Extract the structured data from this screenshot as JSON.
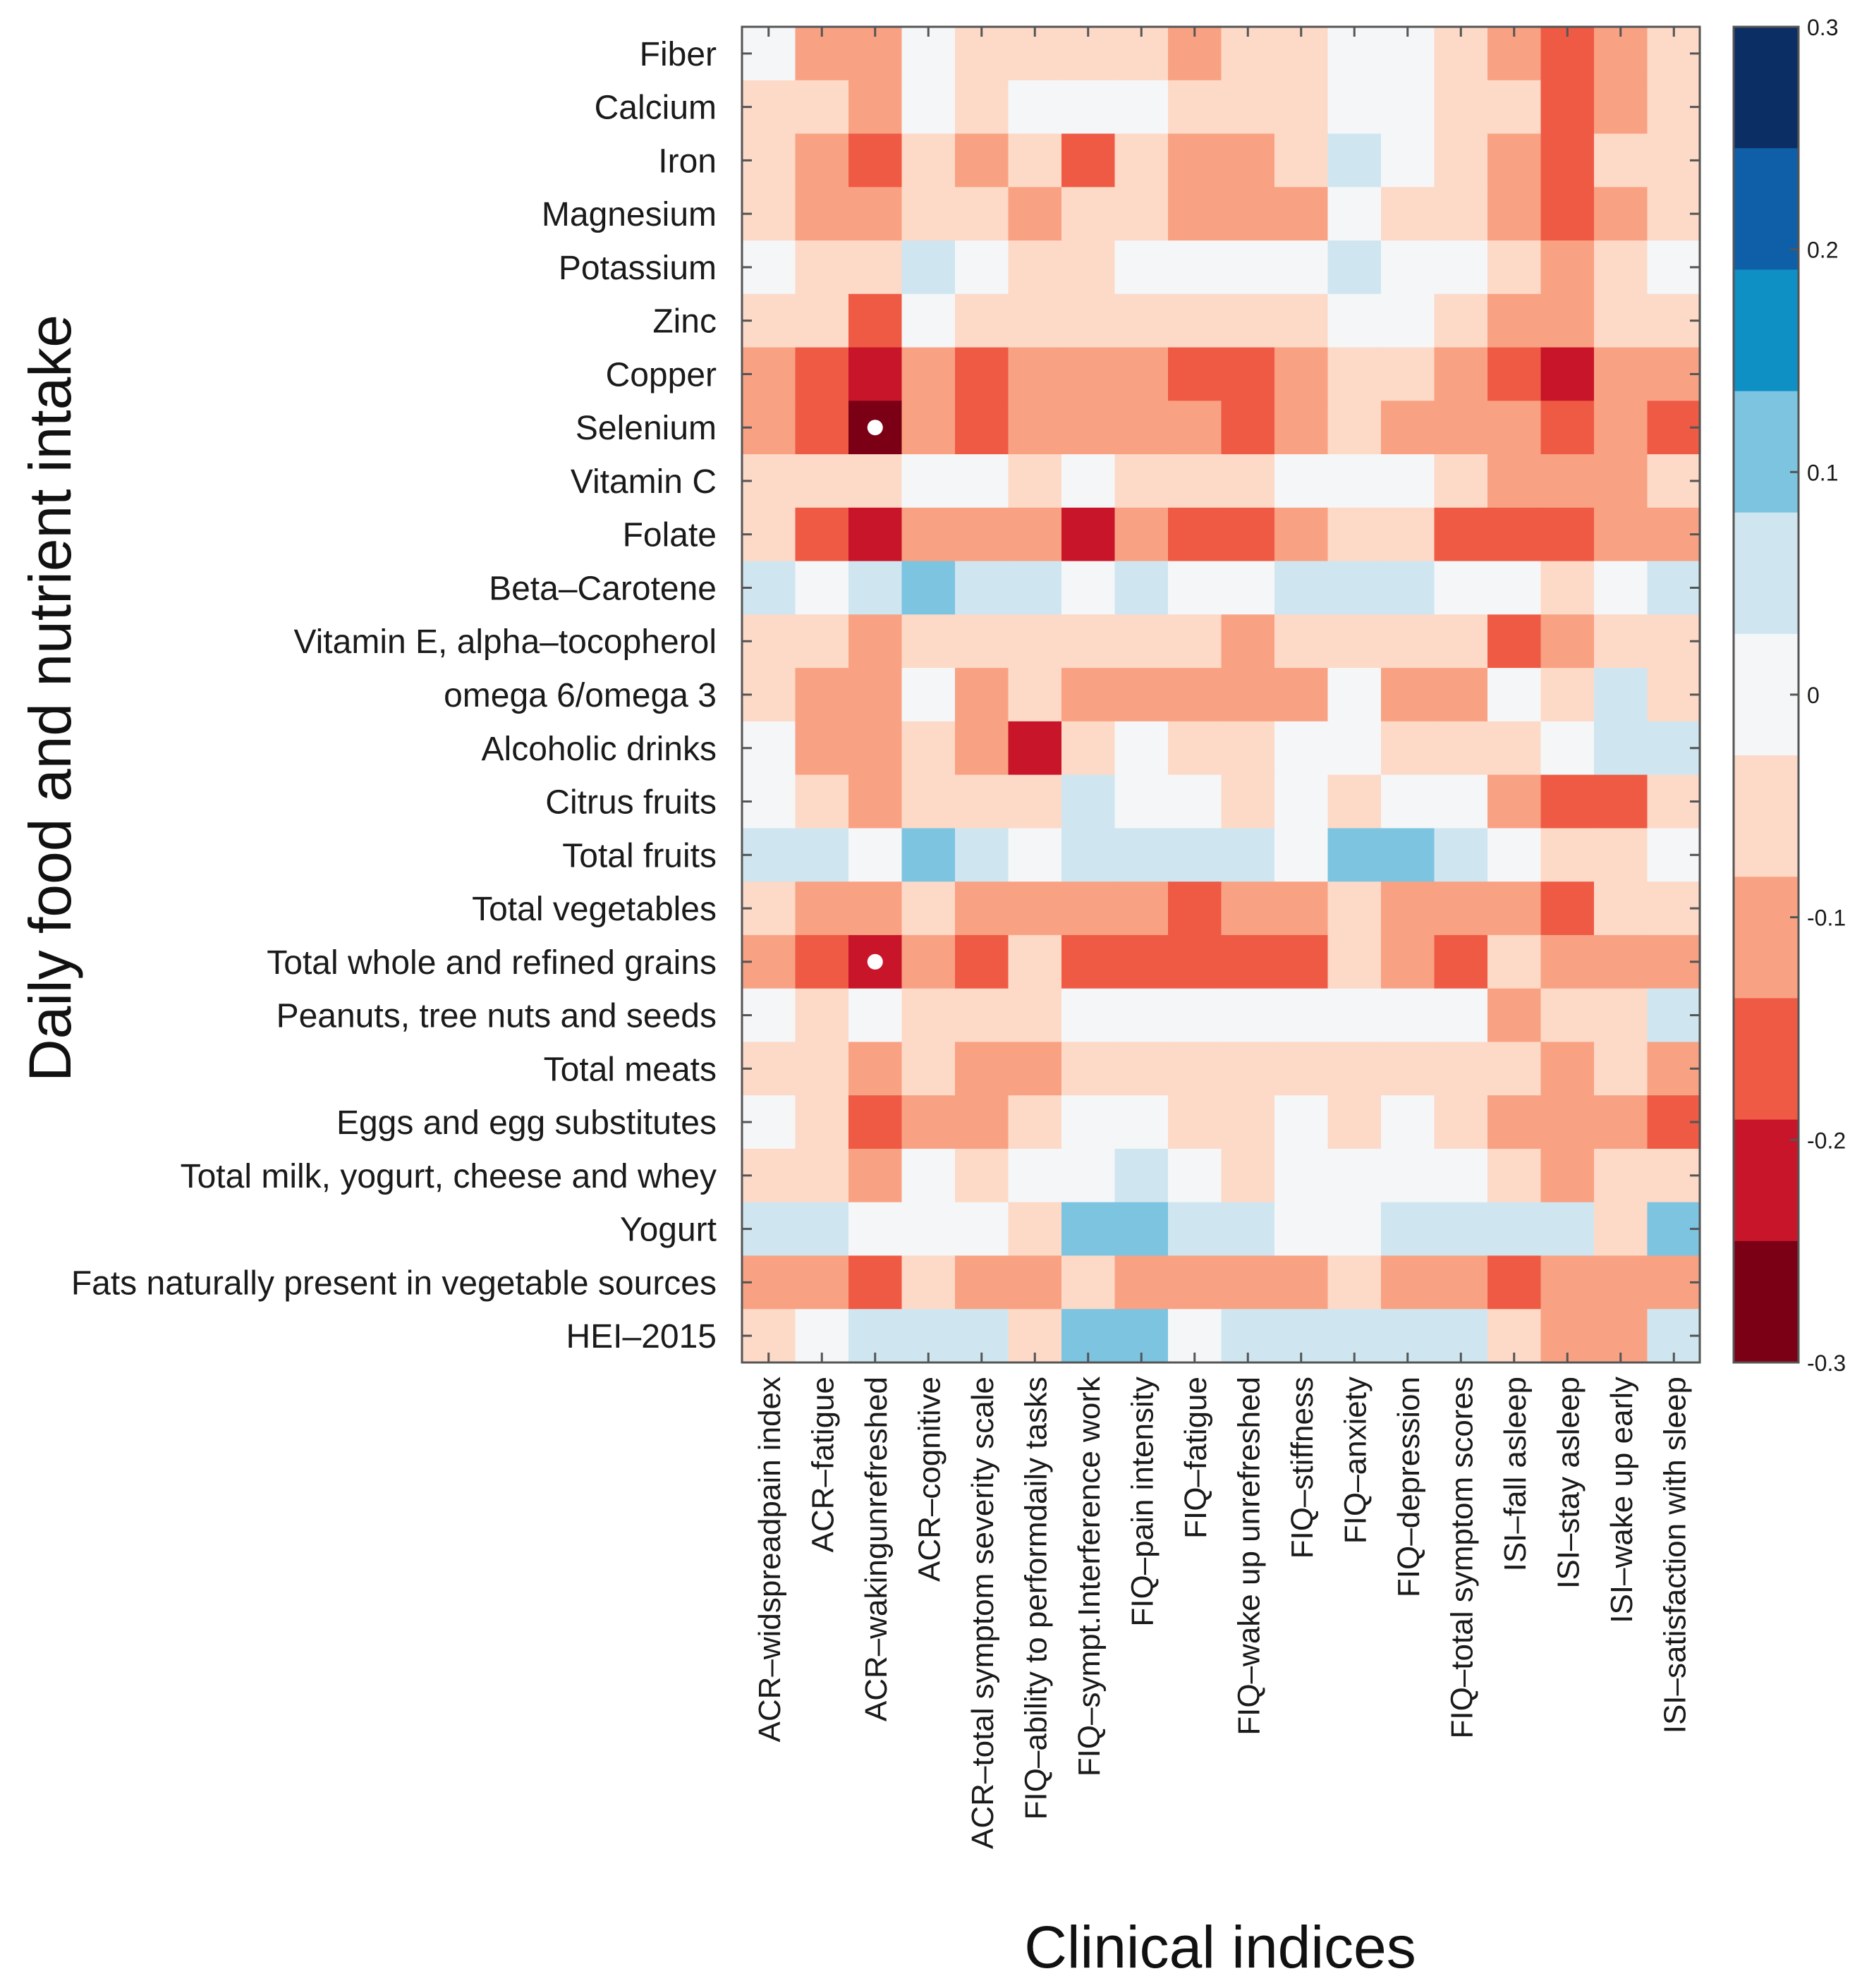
{
  "chart_data": {
    "type": "heatmap",
    "title": "",
    "xlabel": "Clinical indices",
    "ylabel": "Daily food and nutrient intake",
    "columns": [
      "ACR–widspreadpain index",
      "ACR–fatigue",
      "ACR–wakingunrefreshed",
      "ACR–cognitive",
      "ACR–total symptom severity  scale",
      "FIQ–ability to performdaily  tasks",
      "FIQ–sympt.Interference  work",
      "FIQ–pain intensity",
      "FIQ–fatigue",
      "FIQ–wake up unrefreshed",
      "FIQ–stiffness",
      "FIQ–anxiety",
      "FIQ–depression",
      "FIQ–total symptom scores",
      "ISI–fall asleep",
      "ISI–stay asleep",
      "ISI–wake up early",
      "ISI–satisfaction with sleep"
    ],
    "rows": [
      "Fiber",
      "Calcium",
      "Iron",
      "Magnesium",
      "Potassium",
      "Zinc",
      "Copper",
      "Selenium",
      "Vitamin C",
      "Folate",
      "Beta–Carotene",
      "Vitamin E,  alpha–tocopherol",
      "omega 6/omega 3",
      "Alcoholic drinks",
      "Citrus fruits",
      "Total fruits",
      "Total vegetables",
      "Total whole and refined grains",
      "Peanuts, tree  nuts and seeds",
      "Total meats",
      "Eggs and egg substitutes",
      "Total milk, yogurt, cheese and whey",
      "Yogurt",
      "Fats naturally present in vegetable sources",
      "HEI–2015"
    ],
    "values": [
      [
        0,
        -0.1,
        -0.1,
        0,
        -0.05,
        -0.05,
        -0.05,
        -0.05,
        -0.1,
        -0.05,
        -0.05,
        0,
        0,
        -0.05,
        -0.1,
        -0.15,
        -0.1,
        -0.05
      ],
      [
        -0.05,
        -0.05,
        -0.1,
        0,
        -0.05,
        0,
        0,
        0,
        -0.05,
        -0.05,
        -0.05,
        0,
        0,
        -0.05,
        -0.05,
        -0.15,
        -0.1,
        -0.05
      ],
      [
        -0.05,
        -0.1,
        -0.15,
        -0.05,
        -0.1,
        -0.05,
        -0.15,
        -0.05,
        -0.1,
        -0.1,
        -0.05,
        0.05,
        0,
        -0.05,
        -0.1,
        -0.15,
        -0.05,
        -0.05
      ],
      [
        -0.05,
        -0.1,
        -0.1,
        -0.05,
        -0.05,
        -0.1,
        -0.05,
        -0.05,
        -0.1,
        -0.1,
        -0.1,
        0,
        -0.05,
        -0.05,
        -0.1,
        -0.15,
        -0.1,
        -0.05
      ],
      [
        0,
        -0.05,
        -0.05,
        0.05,
        0,
        -0.05,
        -0.05,
        0,
        0,
        0,
        0,
        0.05,
        0,
        0,
        -0.05,
        -0.1,
        -0.05,
        0
      ],
      [
        -0.05,
        -0.05,
        -0.15,
        0,
        -0.05,
        -0.05,
        -0.05,
        -0.05,
        -0.05,
        -0.05,
        -0.05,
        0,
        0,
        -0.05,
        -0.1,
        -0.1,
        -0.05,
        -0.05
      ],
      [
        -0.1,
        -0.15,
        -0.2,
        -0.1,
        -0.15,
        -0.1,
        -0.1,
        -0.1,
        -0.15,
        -0.15,
        -0.1,
        -0.05,
        -0.05,
        -0.1,
        -0.15,
        -0.2,
        -0.1,
        -0.1
      ],
      [
        -0.1,
        -0.15,
        -0.3,
        -0.1,
        -0.15,
        -0.1,
        -0.1,
        -0.1,
        -0.1,
        -0.15,
        -0.1,
        -0.05,
        -0.1,
        -0.1,
        -0.1,
        -0.15,
        -0.1,
        -0.15
      ],
      [
        -0.05,
        -0.05,
        -0.05,
        0,
        0,
        -0.05,
        0,
        -0.05,
        -0.05,
        -0.05,
        0,
        0,
        0,
        -0.05,
        -0.1,
        -0.1,
        -0.1,
        -0.05
      ],
      [
        -0.05,
        -0.15,
        -0.2,
        -0.1,
        -0.1,
        -0.1,
        -0.2,
        -0.1,
        -0.15,
        -0.15,
        -0.1,
        -0.05,
        -0.05,
        -0.15,
        -0.15,
        -0.15,
        -0.1,
        -0.1
      ],
      [
        0.05,
        0,
        0.05,
        0.1,
        0.05,
        0.05,
        0,
        0.05,
        0,
        0,
        0.05,
        0.05,
        0.05,
        0,
        0,
        -0.05,
        0,
        0.05
      ],
      [
        -0.05,
        -0.05,
        -0.1,
        -0.05,
        -0.05,
        -0.05,
        -0.05,
        -0.05,
        -0.05,
        -0.1,
        -0.05,
        -0.05,
        -0.05,
        -0.05,
        -0.15,
        -0.1,
        -0.05,
        -0.05
      ],
      [
        -0.05,
        -0.1,
        -0.1,
        0,
        -0.1,
        -0.05,
        -0.1,
        -0.1,
        -0.1,
        -0.1,
        -0.1,
        0,
        -0.1,
        -0.1,
        0,
        -0.05,
        0.05,
        -0.05
      ],
      [
        0,
        -0.1,
        -0.1,
        -0.05,
        -0.1,
        -0.2,
        -0.05,
        0,
        -0.05,
        -0.05,
        0,
        0,
        -0.05,
        -0.05,
        -0.05,
        0,
        0.05,
        0.05
      ],
      [
        0,
        -0.05,
        -0.1,
        -0.05,
        -0.05,
        -0.05,
        0.05,
        0,
        0,
        -0.05,
        0,
        -0.05,
        0,
        0,
        -0.1,
        -0.15,
        -0.15,
        -0.05
      ],
      [
        0.05,
        0.05,
        0,
        0.1,
        0.05,
        0,
        0.05,
        0.05,
        0.05,
        0.05,
        0,
        0.1,
        0.1,
        0.05,
        0,
        -0.05,
        -0.05,
        0
      ],
      [
        -0.05,
        -0.1,
        -0.1,
        -0.05,
        -0.1,
        -0.1,
        -0.1,
        -0.1,
        -0.15,
        -0.1,
        -0.1,
        -0.05,
        -0.1,
        -0.1,
        -0.1,
        -0.15,
        -0.05,
        -0.05
      ],
      [
        -0.1,
        -0.15,
        -0.2,
        -0.1,
        -0.15,
        -0.05,
        -0.15,
        -0.15,
        -0.15,
        -0.15,
        -0.15,
        -0.05,
        -0.1,
        -0.15,
        -0.05,
        -0.1,
        -0.1,
        -0.1
      ],
      [
        0,
        -0.05,
        0,
        -0.05,
        -0.05,
        -0.05,
        0,
        0,
        0,
        0,
        0,
        0,
        0,
        0,
        -0.1,
        -0.05,
        -0.05,
        0.05
      ],
      [
        -0.05,
        -0.05,
        -0.1,
        -0.05,
        -0.1,
        -0.1,
        -0.05,
        -0.05,
        -0.05,
        -0.05,
        -0.05,
        -0.05,
        -0.05,
        -0.05,
        -0.05,
        -0.1,
        -0.05,
        -0.1
      ],
      [
        0,
        -0.05,
        -0.15,
        -0.1,
        -0.1,
        -0.05,
        0,
        0,
        -0.05,
        -0.05,
        0,
        -0.05,
        0,
        -0.05,
        -0.1,
        -0.1,
        -0.1,
        -0.15
      ],
      [
        -0.05,
        -0.05,
        -0.1,
        0,
        -0.05,
        0,
        0,
        0.05,
        0,
        -0.05,
        0,
        0,
        0,
        0,
        -0.05,
        -0.1,
        -0.05,
        -0.05
      ],
      [
        0.05,
        0.05,
        0,
        0,
        0,
        -0.05,
        0.1,
        0.1,
        0.05,
        0.05,
        0,
        0,
        0.05,
        0.05,
        0.05,
        0.05,
        -0.05,
        0.1
      ],
      [
        -0.1,
        -0.1,
        -0.15,
        -0.05,
        -0.1,
        -0.1,
        -0.05,
        -0.1,
        -0.1,
        -0.1,
        -0.1,
        -0.05,
        -0.1,
        -0.1,
        -0.15,
        -0.1,
        -0.1,
        -0.1
      ],
      [
        -0.05,
        0,
        0.05,
        0.05,
        0.05,
        -0.05,
        0.1,
        0.1,
        0,
        0.05,
        0.05,
        0.05,
        0.05,
        0.05,
        -0.05,
        -0.1,
        -0.1,
        0.05
      ]
    ],
    "significant_marks": [
      {
        "row": "Selenium",
        "column": "ACR–wakingunrefreshed"
      },
      {
        "row": "Total whole and refined grains",
        "column": "ACR–wakingunrefreshed"
      }
    ],
    "colorbar": {
      "range": [
        -0.3,
        0.3
      ],
      "ticks": [
        "0.3",
        "0.2",
        "0.1",
        "0",
        "-0.1",
        "-0.2",
        "-0.3"
      ],
      "colors_top_to_bottom": [
        "#0b2f64",
        "#0e5fa8",
        "#0e90c4",
        "#7cc4e0",
        "#cfe6f1",
        "#f5f6f8",
        "#fdd9c7",
        "#f9a283",
        "#ef5a44",
        "#c8152a",
        "#7b0016"
      ]
    }
  }
}
